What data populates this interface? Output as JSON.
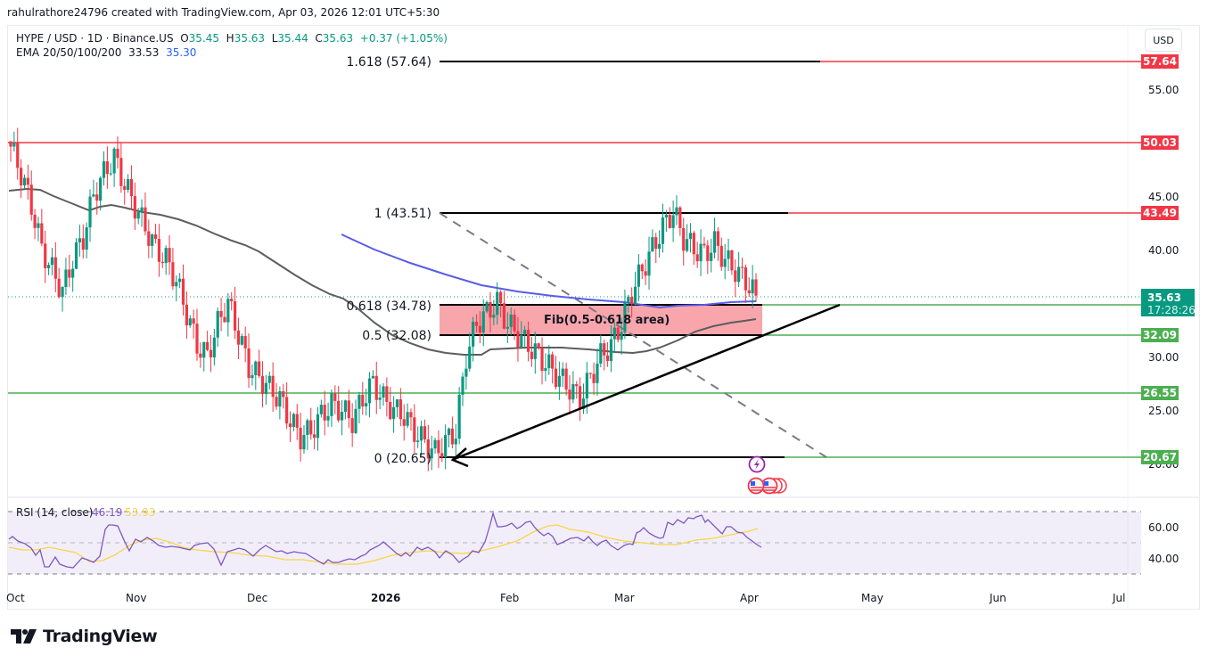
{
  "credit": "rahulrathore24796 created with TradingView.com, Apr 03, 2026 12:01 UTC+5:30",
  "legend": {
    "symbol": "HYPE / USD · 1D · Binance.US",
    "o_label": "O",
    "o": "35.45",
    "h_label": "H",
    "h": "35.63",
    "l_label": "L",
    "l": "35.44",
    "c_label": "C",
    "c": "35.63",
    "change": "+0.37 (+1.05%)",
    "ema_label": "EMA 20/50/100/200",
    "ema_val1": "33.53",
    "ema_val2": "35.30"
  },
  "currency_button": "USD",
  "price_axis": {
    "ticks": [
      "55.00",
      "45.00",
      "40.00",
      "30.00",
      "25.00",
      "20.00"
    ],
    "badges": [
      {
        "value": "57.64",
        "color": "#f23645"
      },
      {
        "value": "50.03",
        "color": "#f23645"
      },
      {
        "value": "43.49",
        "color": "#f23645"
      },
      {
        "value": "32.09",
        "color": "#4caf50"
      },
      {
        "value": "26.55",
        "color": "#4caf50"
      },
      {
        "value": "20.67",
        "color": "#4caf50"
      }
    ],
    "last_price": "35.63",
    "countdown": "17:28:26",
    "last_price_color": "#089981"
  },
  "fib_labels": {
    "l1618": "1.618 (57.64)",
    "l1": "1 (43.51)",
    "l0618": "0.618 (34.78)",
    "l05": "0.5 (32.08)",
    "l0": "0 (20.65)",
    "zone": "Fib(0.5-0.618 area)"
  },
  "rsi": {
    "label": "RSI (14, close)",
    "value": "46.19",
    "ma_value": "53.93",
    "ticks": [
      "60.00",
      "40.00"
    ]
  },
  "time_axis": [
    "Oct",
    "Nov",
    "Dec",
    "2026",
    "Feb",
    "Mar",
    "Apr",
    "May",
    "Jun",
    "Jul"
  ],
  "brand": "TradingView",
  "chart_data": {
    "type": "candlestick",
    "title": "HYPE / USD · 1D · Binance.US",
    "ohlc_last": {
      "open": 35.45,
      "high": 35.63,
      "low": 35.44,
      "close": 35.63,
      "change": 0.37,
      "change_pct": 1.05
    },
    "indicators": {
      "ema": {
        "periods": [
          20,
          50,
          100,
          200
        ],
        "values": [
          33.53,
          35.3
        ]
      },
      "rsi": {
        "period": 14,
        "value": 46.19,
        "ma": 53.93,
        "bands": [
          70,
          50,
          30
        ]
      }
    },
    "horizontal_levels": {
      "resistance": [
        57.64,
        50.03,
        43.49
      ],
      "support": [
        32.09,
        26.55,
        20.67
      ]
    },
    "fibonacci": [
      {
        "ratio": 1.618,
        "price": 57.64
      },
      {
        "ratio": 1,
        "price": 43.51
      },
      {
        "ratio": 0.618,
        "price": 34.78
      },
      {
        "ratio": 0.5,
        "price": 32.08
      },
      {
        "ratio": 0,
        "price": 20.65
      }
    ],
    "fib_zone": {
      "from": 32.08,
      "to": 34.78,
      "label": "Fib(0.5-0.618 area)"
    },
    "x_ticks": [
      "Oct",
      "Nov",
      "Dec",
      "2026",
      "Feb",
      "Mar",
      "Apr",
      "May",
      "Jun",
      "Jul"
    ],
    "y_ticks": [
      20,
      25,
      30,
      40,
      45,
      55
    ],
    "ylim": [
      18,
      60
    ],
    "approx_closes": [
      49.5,
      47,
      44,
      40,
      38,
      36,
      39,
      41,
      45,
      47,
      48.5,
      46,
      44,
      42,
      40,
      39,
      37,
      34,
      31,
      30,
      33,
      35,
      32,
      29,
      28,
      27,
      26,
      24,
      22.5,
      23,
      24.5,
      25.5,
      25,
      24,
      26,
      27.5,
      26,
      25,
      24.5,
      23,
      22,
      21,
      22,
      23,
      30,
      33,
      34,
      35,
      33,
      32,
      31,
      30,
      29,
      28,
      27,
      26,
      28,
      30,
      31,
      33,
      36,
      38,
      40,
      42,
      43.5,
      41,
      40,
      39.5,
      40.5,
      39,
      38,
      37,
      35.63
    ]
  }
}
